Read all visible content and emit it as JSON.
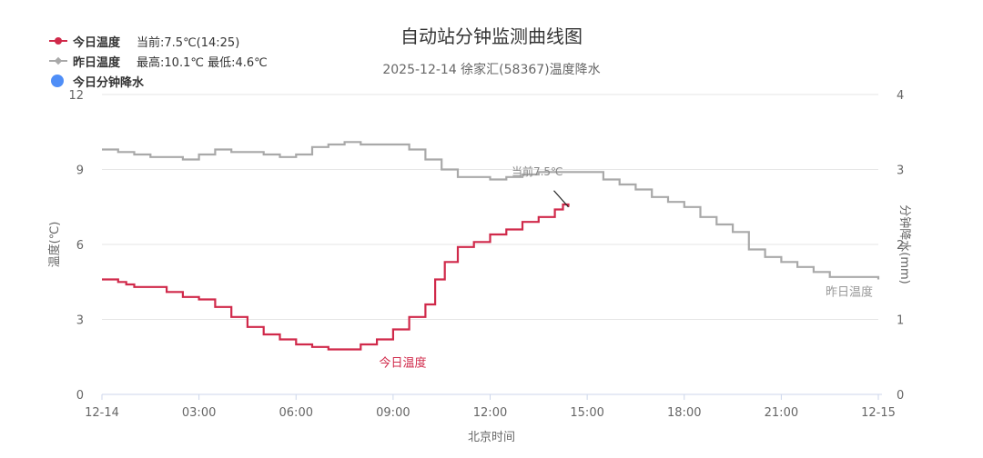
{
  "title": "自动站分钟监测曲线图",
  "subtitle": "2025-12-14 徐家汇(58367)温度降水",
  "legend": {
    "today": {
      "label": "今日温度",
      "info": "当前:7.5℃(14:25)"
    },
    "yesterday": {
      "label": "昨日温度",
      "info": "最高:10.1℃ 最低:4.6℃"
    },
    "precip": {
      "label": "今日分钟降水"
    }
  },
  "colors": {
    "today": "#d0294a",
    "yesterday": "#a9a9a9",
    "precip": "#4f8ef7",
    "grid": "#e6e6e6",
    "axis_text": "#666666"
  },
  "chart_data": {
    "type": "line",
    "title": "自动站分钟监测曲线图",
    "subtitle": "2025-12-14 徐家汇(58367)温度降水",
    "xlabel": "北京时间",
    "ylabel": "温度(℃)",
    "y2label": "分钟降水(mm)",
    "xlim": [
      0,
      24
    ],
    "x_tick_values": [
      0,
      3,
      6,
      9,
      12,
      15,
      18,
      21,
      24
    ],
    "x_tick_labels": [
      "12-14",
      "03:00",
      "06:00",
      "09:00",
      "12:00",
      "15:00",
      "18:00",
      "21:00",
      "12-15"
    ],
    "ylim": [
      0,
      12
    ],
    "y_ticks": [
      0,
      3,
      6,
      9,
      12
    ],
    "y2lim": [
      0,
      4
    ],
    "y2_ticks": [
      0,
      1,
      2,
      3,
      4
    ],
    "grid": true,
    "legend_position": "top-left",
    "series": [
      {
        "name": "今日温度",
        "color": "#d0294a",
        "x": [
          0,
          0.5,
          0.75,
          1.0,
          1.5,
          2.0,
          2.5,
          3.0,
          3.5,
          4.0,
          4.5,
          5.0,
          5.5,
          6.0,
          6.5,
          7.0,
          7.5,
          8.0,
          8.5,
          9.0,
          9.5,
          10.0,
          10.3,
          10.6,
          11.0,
          11.5,
          12.0,
          12.5,
          13.0,
          13.5,
          14.0,
          14.25,
          14.42
        ],
        "y": [
          4.6,
          4.5,
          4.4,
          4.3,
          4.3,
          4.1,
          3.9,
          3.8,
          3.5,
          3.1,
          2.7,
          2.4,
          2.2,
          2.0,
          1.9,
          1.8,
          1.8,
          2.0,
          2.2,
          2.6,
          3.1,
          3.6,
          4.6,
          5.3,
          5.9,
          6.1,
          6.4,
          6.6,
          6.9,
          7.1,
          7.4,
          7.6,
          7.5
        ],
        "data_label": "今日温度",
        "data_label_x": 9.3,
        "data_label_y": 1.3,
        "annotation": "当前7.5℃"
      },
      {
        "name": "昨日温度",
        "color": "#a9a9a9",
        "x": [
          0,
          0.5,
          1.0,
          1.5,
          2.0,
          2.5,
          3.0,
          3.5,
          4.0,
          4.5,
          5.0,
          5.5,
          6.0,
          6.5,
          7.0,
          7.5,
          8.0,
          8.5,
          9.0,
          9.5,
          10.0,
          10.5,
          11.0,
          11.5,
          12.0,
          12.5,
          13.0,
          13.5,
          14.0,
          14.5,
          15.0,
          15.5,
          16.0,
          16.5,
          17.0,
          17.5,
          18.0,
          18.5,
          19.0,
          19.5,
          20.0,
          20.5,
          21.0,
          21.5,
          22.0,
          22.5,
          23.0,
          23.5,
          24.0
        ],
        "y": [
          9.8,
          9.7,
          9.6,
          9.5,
          9.5,
          9.4,
          9.6,
          9.8,
          9.7,
          9.7,
          9.6,
          9.5,
          9.6,
          9.9,
          10.0,
          10.1,
          10.0,
          10.0,
          10.0,
          9.8,
          9.4,
          9.0,
          8.7,
          8.7,
          8.6,
          8.7,
          8.8,
          8.9,
          8.9,
          8.9,
          8.9,
          8.6,
          8.4,
          8.2,
          7.9,
          7.7,
          7.5,
          7.1,
          6.8,
          6.5,
          5.8,
          5.5,
          5.3,
          5.1,
          4.9,
          4.7,
          4.7,
          4.7,
          4.6
        ],
        "data_label": "昨日温度"
      },
      {
        "name": "今日分钟降水",
        "color": "#4f8ef7",
        "x": [],
        "y": []
      }
    ]
  }
}
